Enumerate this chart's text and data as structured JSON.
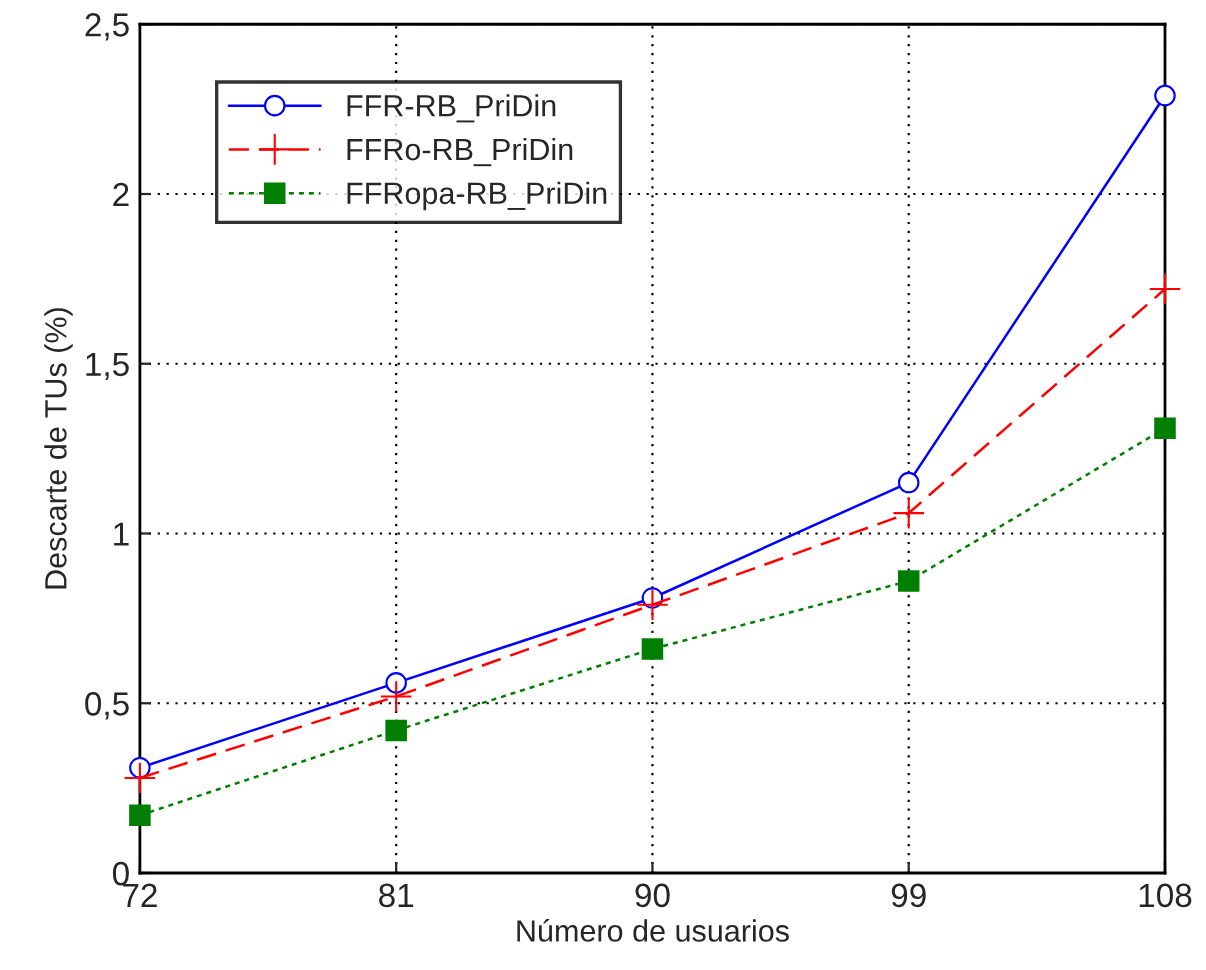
{
  "chart_data": {
    "type": "line",
    "xlabel": "Número de usuarios",
    "ylabel": "Descarte de TUs (%)",
    "x": [
      72,
      81,
      90,
      99,
      108
    ],
    "series": [
      {
        "name": "FFR-RB_PriDin",
        "color": "#0000ff",
        "marker": "circle",
        "line_style": "solid",
        "values": [
          0.31,
          0.56,
          0.81,
          1.15,
          2.29
        ]
      },
      {
        "name": "FFRo-RB_PriDin",
        "color": "#ff0000",
        "marker": "cross",
        "line_style": "dashed",
        "values": [
          0.28,
          0.52,
          0.79,
          1.06,
          1.72
        ]
      },
      {
        "name": "FFRopa-RB_PriDin",
        "color": "#007f00",
        "marker": "square",
        "line_style": "dotted",
        "values": [
          0.17,
          0.42,
          0.66,
          0.86,
          1.31
        ]
      }
    ],
    "xlim": [
      72,
      108
    ],
    "xticks": [
      72,
      81,
      90,
      99,
      108
    ],
    "ylim": [
      0,
      2.5
    ],
    "yticks": [
      0,
      {
        "value": 0.5,
        "label": "0,5"
      },
      1,
      {
        "value": 1.5,
        "label": "1,5"
      },
      2,
      {
        "value": 2.5,
        "label": "2,5"
      }
    ],
    "grid": true,
    "legend": "top left"
  }
}
